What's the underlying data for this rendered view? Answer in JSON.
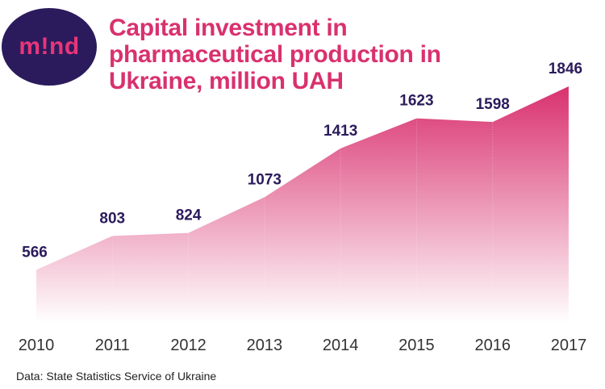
{
  "logo": {
    "text": "m!nd"
  },
  "chart_data": {
    "type": "area",
    "title": "Capital investment in pharmaceutical production in Ukraine, million UAH",
    "categories": [
      "2010",
      "2011",
      "2012",
      "2013",
      "2014",
      "2015",
      "2016",
      "2017"
    ],
    "values": [
      566,
      803,
      824,
      1073,
      1413,
      1623,
      1598,
      1846
    ],
    "xlabel": "",
    "ylabel": "",
    "ylim": [
      0,
      1846
    ],
    "grid": false,
    "legend": "none",
    "colors": {
      "fill_top": "#d9316e",
      "fill_bottom": "#ffffff",
      "labels": "#2b1b5c",
      "title": "#d9316e"
    }
  },
  "source": "Data: State Statistics Service of Ukraine"
}
